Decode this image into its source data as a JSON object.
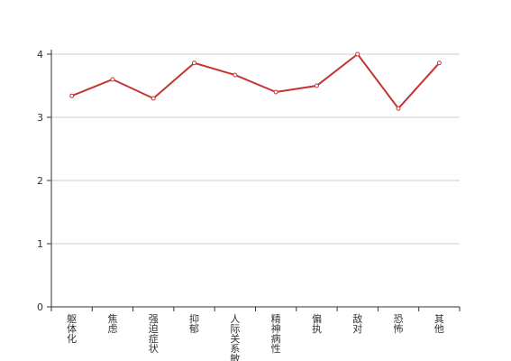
{
  "chart_data": {
    "type": "line",
    "categories": [
      "躯体化",
      "焦虑",
      "强迫症状",
      "抑郁",
      "人际关系敏感",
      "精神病性",
      "偏执",
      "敌对",
      "恐怖",
      "其他"
    ],
    "values": [
      3.34,
      3.6,
      3.3,
      3.86,
      3.67,
      3.4,
      3.5,
      4.0,
      3.14,
      3.86
    ],
    "color": "#c23531",
    "ylim": [
      0,
      4
    ],
    "yticks": [
      0,
      1,
      2,
      3,
      4
    ],
    "grid": true
  }
}
